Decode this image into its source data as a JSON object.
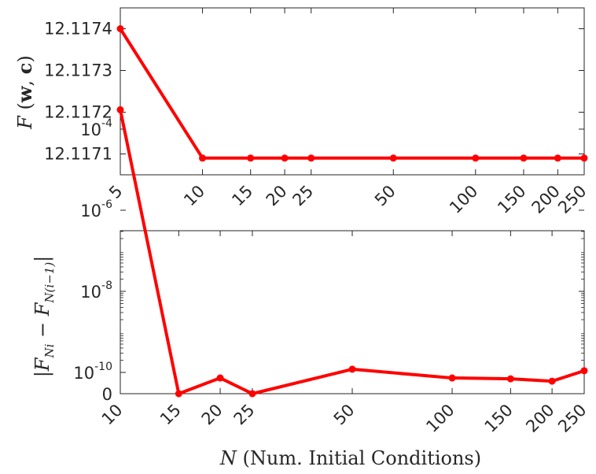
{
  "chart_data": [
    {
      "type": "line",
      "ylabel": "F(w,c)",
      "ylabel_parts": {
        "func": "F",
        "lparen": "(",
        "w": "w",
        "comma": ",",
        "c": "c",
        "rparen": ")"
      },
      "x": [
        5,
        10,
        15,
        20,
        25,
        50,
        100,
        150,
        200,
        250
      ],
      "x_tick_labels": [
        "5",
        "10",
        "15",
        "20",
        "25",
        "50",
        "100",
        "150",
        "200",
        "250"
      ],
      "xscale": "log",
      "xlim": [
        5,
        250
      ],
      "ylim": [
        12.11705,
        12.11745
      ],
      "y_ticks": [
        12.1171,
        12.1172,
        12.1173,
        12.1174
      ],
      "y_tick_labels": [
        "12.1171",
        "12.1172",
        "12.1173",
        "12.1174"
      ],
      "series": [
        {
          "values": [
            12.1174,
            12.11709,
            12.11709,
            12.11709,
            12.11709,
            12.11709,
            12.11709,
            12.11709,
            12.11709,
            12.11709
          ],
          "color": "#ff0000"
        }
      ]
    },
    {
      "type": "line",
      "ylabel": "|F_Ni − F_N(i−1)|",
      "ylabel_parts": {
        "bar": "|",
        "func": "F",
        "sub1": "Ni",
        "minus": "−",
        "sub2": "N(i−1)"
      },
      "xlabel": "N (Num. Initial Conditions)",
      "xlabel_parts": {
        "var": "N",
        "rest": " (Num. Initial Conditions)"
      },
      "x": [
        10,
        15,
        20,
        25,
        50,
        100,
        150,
        200,
        250
      ],
      "x_tick_labels": [
        "10",
        "15",
        "20",
        "25",
        "50",
        "100",
        "150",
        "200",
        "250"
      ],
      "xscale": "log",
      "xlim": [
        10,
        250
      ],
      "yscale": "symlog",
      "y_ticks": [
        1e-10,
        1e-08,
        1e-06,
        0.0001
      ],
      "y_tick_labels": [
        {
          "base": "10",
          "exp": "-10"
        },
        {
          "base": "10",
          "exp": "-8"
        },
        {
          "base": "10",
          "exp": "-6"
        },
        {
          "base": "10",
          "exp": "-4"
        }
      ],
      "y_zero_label": "0",
      "series": [
        {
          "values": [
            0.0003,
            0,
            3e-11,
            0,
            1.2e-10,
            3e-11,
            2.5e-11,
            1.5e-11,
            1.1e-10
          ],
          "color": "#ff0000"
        }
      ]
    }
  ]
}
